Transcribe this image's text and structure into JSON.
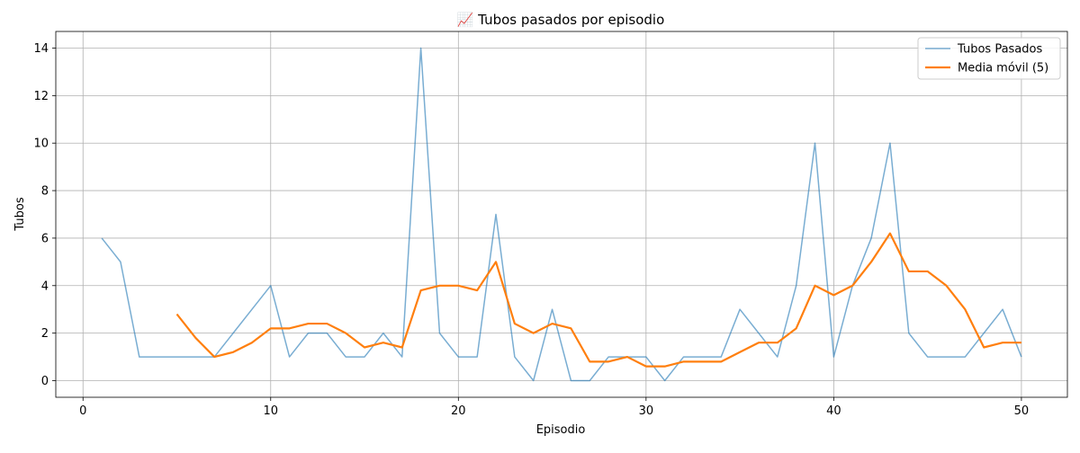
{
  "chart_data": {
    "type": "line",
    "title": "📈 Tubos pasados por episodio",
    "xlabel": "Episodio",
    "ylabel": "Tubos",
    "xlim": [
      -1.45,
      52.45
    ],
    "ylim": [
      -0.7,
      14.7
    ],
    "xticks": [
      0,
      10,
      20,
      30,
      40,
      50
    ],
    "yticks": [
      0,
      2,
      4,
      6,
      8,
      10,
      12,
      14
    ],
    "grid": true,
    "legend_position": "top-right",
    "x": [
      1,
      2,
      3,
      4,
      5,
      6,
      7,
      8,
      9,
      10,
      11,
      12,
      13,
      14,
      15,
      16,
      17,
      18,
      19,
      20,
      21,
      22,
      23,
      24,
      25,
      26,
      27,
      28,
      29,
      30,
      31,
      32,
      33,
      34,
      35,
      36,
      37,
      38,
      39,
      40,
      41,
      42,
      43,
      44,
      45,
      46,
      47,
      48,
      49,
      50
    ],
    "series": [
      {
        "name": "Tubos Pasados",
        "color": "#1f77b4",
        "opacity": 0.6,
        "values": [
          6,
          5,
          1,
          1,
          1,
          1,
          1,
          2,
          3,
          4,
          1,
          2,
          2,
          1,
          1,
          2,
          1,
          14,
          2,
          1,
          1,
          7,
          1,
          0,
          3,
          0,
          0,
          1,
          1,
          1,
          0,
          1,
          1,
          1,
          3,
          2,
          1,
          4,
          10,
          1,
          4,
          6,
          10,
          2,
          1,
          1,
          1,
          2,
          3,
          1
        ]
      },
      {
        "name": "Media móvil (5)",
        "color": "#ff7f0e",
        "opacity": 1,
        "values": [
          null,
          null,
          null,
          null,
          2.8,
          1.8,
          1.0,
          1.2,
          1.6,
          2.2,
          2.2,
          2.4,
          2.4,
          2.0,
          1.4,
          1.6,
          1.4,
          3.8,
          4.0,
          4.0,
          3.8,
          5.0,
          2.4,
          2.0,
          2.4,
          2.2,
          0.8,
          0.8,
          1.0,
          0.6,
          0.6,
          0.8,
          0.8,
          0.8,
          1.2,
          1.6,
          1.6,
          2.2,
          4.0,
          3.6,
          4.0,
          5.0,
          6.2,
          4.6,
          4.6,
          4.0,
          3.0,
          1.4,
          1.6,
          1.6
        ]
      }
    ]
  }
}
